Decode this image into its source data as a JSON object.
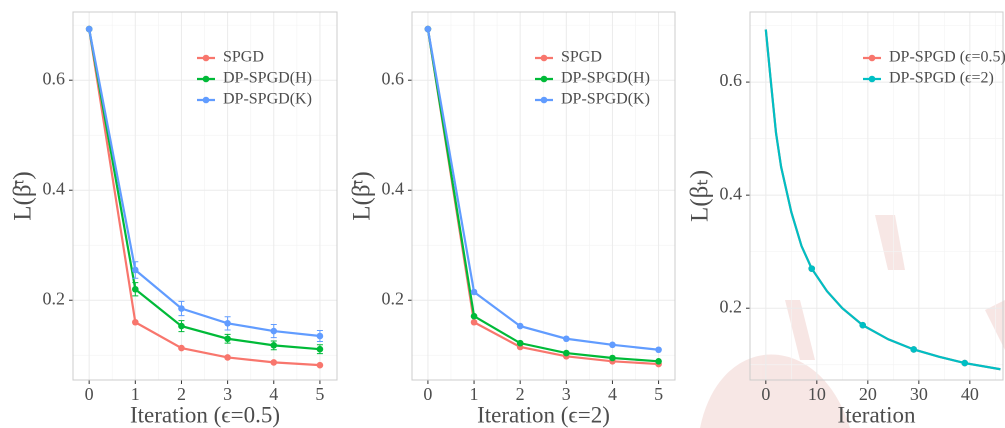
{
  "chart_data": [
    {
      "type": "line",
      "xlabel": "Iteration (ϵ=0.5)",
      "ylabel": "L(β̄ᵗ)",
      "x": [
        0,
        1,
        2,
        3,
        4,
        5
      ],
      "xlim": [
        -0.35,
        5.37
      ],
      "xticks": [
        0,
        1,
        2,
        3,
        4,
        5
      ],
      "ylim": [
        0.055,
        0.724
      ],
      "yticks": [
        0.2,
        0.4,
        0.6
      ],
      "grid": true,
      "legend": "top-right",
      "series": [
        {
          "name": "SPGD",
          "color": "#F8766D",
          "values": [
            0.693,
            0.16,
            0.113,
            0.096,
            0.087,
            0.082
          ]
        },
        {
          "name": "DP-SPGD(H)",
          "color": "#00BA38",
          "values": [
            0.693,
            0.22,
            0.153,
            0.13,
            0.118,
            0.111
          ],
          "errors": [
            0,
            0.012,
            0.01,
            0.008,
            0.008,
            0.008
          ]
        },
        {
          "name": "DP-SPGD(K)",
          "color": "#619CFF",
          "values": [
            0.693,
            0.255,
            0.185,
            0.158,
            0.144,
            0.135
          ],
          "errors": [
            0,
            0.015,
            0.013,
            0.012,
            0.012,
            0.01
          ]
        }
      ]
    },
    {
      "type": "line",
      "xlabel": "Iteration (ϵ=2)",
      "ylabel": "L(β̄ᵗ)",
      "x": [
        0,
        1,
        2,
        3,
        4,
        5
      ],
      "xlim": [
        -0.345,
        5.356
      ],
      "xticks": [
        0,
        1,
        2,
        3,
        4,
        5
      ],
      "ylim": [
        0.055,
        0.724
      ],
      "yticks": [
        0.2,
        0.4,
        0.6
      ],
      "grid": true,
      "legend": "top-right",
      "series": [
        {
          "name": "SPGD",
          "color": "#F8766D",
          "values": [
            0.693,
            0.16,
            0.115,
            0.098,
            0.089,
            0.084
          ]
        },
        {
          "name": "DP-SPGD(H)",
          "color": "#00BA38",
          "values": [
            0.693,
            0.171,
            0.122,
            0.104,
            0.095,
            0.089
          ]
        },
        {
          "name": "DP-SPGD(K)",
          "color": "#619CFF",
          "values": [
            0.693,
            0.215,
            0.153,
            0.13,
            0.119,
            0.11
          ]
        }
      ]
    },
    {
      "type": "line",
      "xlabel": "Iteration",
      "ylabel": "L(βₜ)",
      "x": [
        0,
        1,
        2,
        3,
        5,
        7,
        9,
        12,
        15,
        19,
        24,
        29,
        34,
        39,
        46
      ],
      "xlim": [
        -3.1,
        46.5
      ],
      "xticks": [
        0,
        10,
        20,
        30,
        40
      ],
      "ylim": [
        0.073,
        0.724
      ],
      "yticks": [
        0.2,
        0.4,
        0.6
      ],
      "grid": true,
      "legend": "top-right",
      "markers_at": [
        9,
        19,
        29,
        39
      ],
      "series": [
        {
          "name": "DP-SPGD (ϵ=0.5)",
          "color": "#F8766D",
          "values": [
            0.693,
            0.6,
            0.51,
            0.45,
            0.37,
            0.31,
            0.27,
            0.23,
            0.2,
            0.17,
            0.145,
            0.127,
            0.114,
            0.103,
            0.092
          ]
        },
        {
          "name": "DP-SPGD (ϵ=2)",
          "color": "#00BFC4",
          "values": [
            0.693,
            0.6,
            0.51,
            0.45,
            0.37,
            0.31,
            0.27,
            0.23,
            0.2,
            0.17,
            0.145,
            0.127,
            0.114,
            0.103,
            0.092
          ]
        }
      ]
    }
  ]
}
